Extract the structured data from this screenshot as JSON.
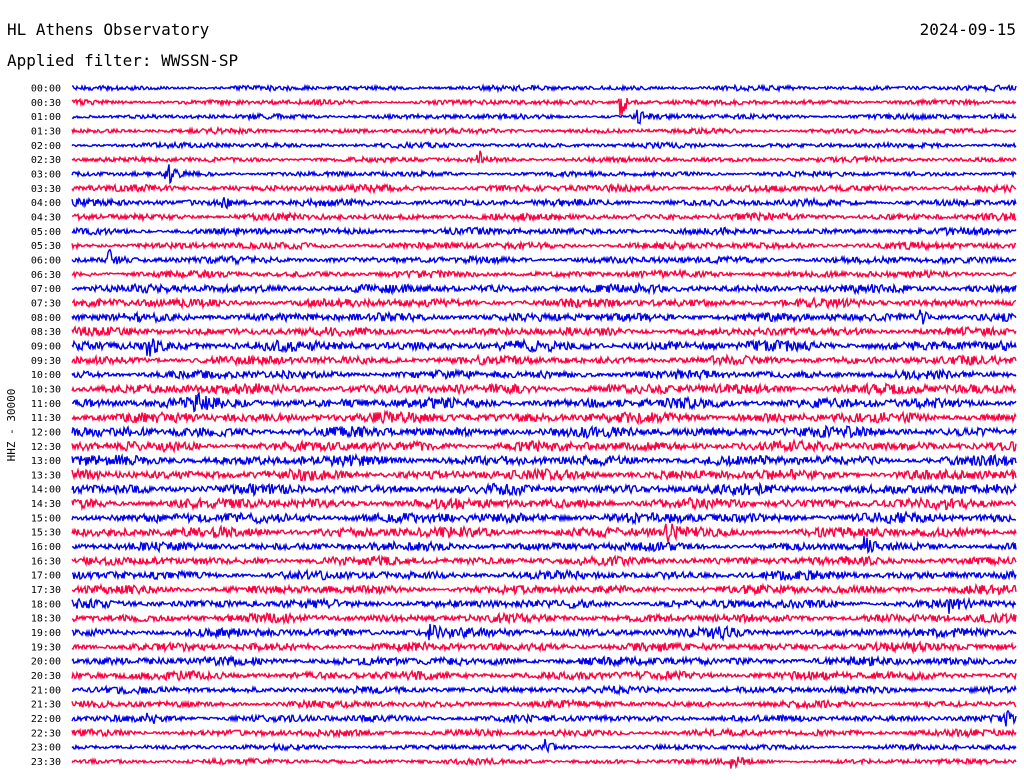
{
  "header": {
    "station": "HL Athens Observatory",
    "date": "2024-09-15",
    "filter": "Applied filter: WWSSN-SP"
  },
  "chart_data": {
    "type": "line",
    "ylabel": "HHZ - 30000",
    "tick_labels": [
      "00:00",
      "00:30",
      "01:00",
      "01:30",
      "02:00",
      "02:30",
      "03:00",
      "03:30",
      "04:00",
      "04:30",
      "05:00",
      "05:30",
      "06:00",
      "06:30",
      "07:00",
      "07:30",
      "08:00",
      "08:30",
      "09:00",
      "09:30",
      "10:00",
      "10:30",
      "11:00",
      "11:30",
      "12:00",
      "12:30",
      "13:00",
      "13:30",
      "14:00",
      "14:30",
      "15:00",
      "15:30",
      "16:00",
      "16:30",
      "17:00",
      "17:30",
      "18:00",
      "18:30",
      "19:00",
      "19:30",
      "20:00",
      "20:30",
      "21:00",
      "21:30",
      "22:00",
      "22:30",
      "23:00",
      "23:30"
    ],
    "colors": [
      "#0000ee",
      "#ff0040"
    ],
    "noise_level": [
      3,
      3,
      3,
      3,
      3,
      3,
      3,
      4,
      4,
      4,
      4,
      4,
      4,
      4,
      5,
      5,
      5,
      5,
      6,
      5,
      5,
      6,
      6,
      6,
      6,
      6,
      6,
      6,
      6,
      6,
      6,
      6,
      5,
      5,
      5,
      5,
      5,
      5,
      5,
      5,
      5,
      5,
      4,
      4,
      4,
      4,
      3,
      3
    ],
    "events": [
      {
        "trace": "00:30",
        "x": 0.58,
        "amp": 16
      },
      {
        "trace": "01:00",
        "x": 0.6,
        "amp": 7
      },
      {
        "trace": "02:30",
        "x": 0.43,
        "amp": 10
      },
      {
        "trace": "03:00",
        "x": 0.1,
        "amp": 11
      },
      {
        "trace": "04:00",
        "x": 0.16,
        "amp": 6
      },
      {
        "trace": "06:00",
        "x": 0.04,
        "amp": 8
      },
      {
        "trace": "08:00",
        "x": 0.9,
        "amp": 7
      },
      {
        "trace": "09:00",
        "x": 0.08,
        "amp": 10
      },
      {
        "trace": "11:00",
        "x": 0.13,
        "amp": 8
      },
      {
        "trace": "15:30",
        "x": 0.63,
        "amp": 10
      },
      {
        "trace": "16:00",
        "x": 0.84,
        "amp": 7
      },
      {
        "trace": "18:00",
        "x": 0.93,
        "amp": 7
      },
      {
        "trace": "19:00",
        "x": 0.38,
        "amp": 7
      },
      {
        "trace": "19:00",
        "x": 0.68,
        "amp": 8
      },
      {
        "trace": "22:00",
        "x": 0.08,
        "amp": 6
      },
      {
        "trace": "22:00",
        "x": 0.99,
        "amp": 6
      },
      {
        "trace": "23:00",
        "x": 0.5,
        "amp": 7
      },
      {
        "trace": "23:30",
        "x": 0.7,
        "amp": 6
      }
    ]
  }
}
